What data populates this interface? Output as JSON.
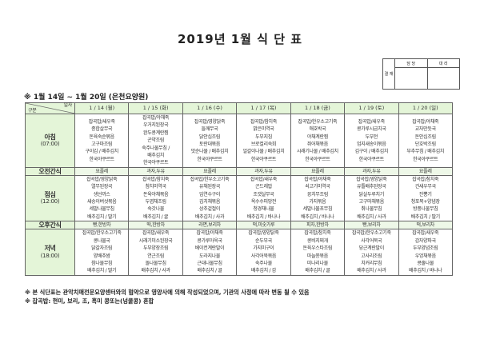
{
  "title": "2019년 1월 식 단 표",
  "approval": {
    "side_label": "결 재",
    "col1": "담 당",
    "col2": "대 리"
  },
  "subtitle": "※ 1월 14일 ~ 1월 20일 (은천요양원)",
  "header": {
    "corner_top": "일자",
    "corner_bottom": "구분",
    "days": [
      "1 / 14 (월)",
      "1 / 15 (화)",
      "1 / 16 (수)",
      "1 / 17 (목)",
      "1 / 18 (금)",
      "1 / 19 (토)",
      "1 / 20 (일)"
    ]
  },
  "rows": [
    {
      "label": "아침",
      "time": "(07:00)",
      "type": "meal",
      "cells": [
        [
          "잡곡밥/새우죽",
          "종합살무국",
          "돈육숙순볶음",
          "고구마조림",
          "구이김 / 배추김치",
          "한국야쿠르트"
        ],
        [
          "잡곡밥/야채죽",
          "우거지된장국",
          "완두콩계란찜",
          "곤약조림",
          "숙주나물무침 /",
          "배추김치",
          "한국야쿠르트"
        ],
        [
          "잡곡밥/영양닭죽",
          "들깨무국",
          "닭안심조림",
          "토란대볶음",
          "맛순나물 / 배추김치",
          "한국야쿠르트"
        ],
        [
          "잡곡밥/참치죽",
          "맑은미역국",
          "두부지짐",
          "브로컬리숙회",
          "얼갈이나물 / 배추김치",
          "한국야쿠르트"
        ],
        [
          "잡곡밥/한우소고기죽",
          "애호박국",
          "야채계란찜",
          "쥐어채볶음",
          "시래기나물 / 배추김치",
          "한국야쿠르트"
        ],
        [
          "잡곡밥/새우죽",
          "콩가루시금치국",
          "두부전",
          "엄지새송이볶음",
          "김구이 / 배추김치",
          "한국야쿠르트"
        ],
        [
          "잡곡밥/야채죽",
          "교자만둣국",
          "돈안심조림",
          "단호박조림",
          "부추무침 / 배추김치",
          "한국야쿠르트"
        ]
      ]
    },
    {
      "label": "오전간식",
      "type": "snack",
      "cells": [
        "요플레",
        "과자,두유",
        "요플레",
        "과자,두유",
        "요플레",
        "과자,두유",
        "요플레"
      ]
    },
    {
      "label": "점심",
      "time": "(12:00)",
      "type": "meal",
      "cells": [
        [
          "잡곡밥/영양닭죽",
          "열무된장국",
          "생선까스",
          "새송이버섯볶음",
          "세발나물무침",
          "배추김치 / 딸기"
        ],
        [
          "잡곡밥/참치죽",
          "참치미역국",
          "돈육야채볶음",
          "두엽채조림",
          "숙갓나물",
          "배추김치 / 귤"
        ],
        [
          "잡곡밥/한우소고기죽",
          "유채된장국",
          "임연수구이",
          "김치채볶음",
          "상추겉절이",
          "배추김치 / 사과"
        ],
        [
          "잡곡밥/새우죽",
          "곤드레밥",
          "조갯살무국",
          "옥수수피망전",
          "청경채나물",
          "배추김치 / 바나나"
        ],
        [
          "잡곡밥/야채죽",
          "쇠고기미역국",
          "꽁치무조림",
          "가지볶음",
          "세발나물초무침",
          "배추김치 / 바나나"
        ],
        [
          "잡곡밥/영양닭죽",
          "유틀배추된장국",
          "닭살두루치기",
          "고구마채볶음",
          "취나물무침",
          "배추김치 / 사과"
        ],
        [
          "잡곡밥/참치죽",
          "건새우무국",
          "잔뽕기",
          "청포묵+양념장",
          "방풍나물무침",
          "배추김치 / 딸기"
        ]
      ]
    },
    {
      "label": "오후간식",
      "type": "snack",
      "cells": [
        "빵,한방차",
        "떡,한방차",
        "라면,보리차",
        "떡,미숫가루",
        "피자,한방차",
        "빵,보리차",
        "떡,보리차"
      ]
    },
    {
      "label": "저녁",
      "time": "(18:00)",
      "type": "meal",
      "cells": [
        [
          "잡곡밥/한우소고기죽",
          "콩나물국",
          "닭갈자조림",
          "양배추쌈",
          "참나물무침",
          "배추김치 / 딸기"
        ],
        [
          "잡곡밥/새우죽",
          "시래기미소된장국",
          "두부양장조림",
          "연근조림",
          "돌나물무침",
          "배추김치 / 사과"
        ],
        [
          "잡곡밥/야채죽",
          "콩가루아욱국",
          "베이컨계란말이",
          "도라지나물",
          "근대나물무침",
          "배추김치 / 귤"
        ],
        [
          "잡곡밥/영양닭죽",
          "순두부국",
          "가지미구이",
          "사각어묵볶음",
          "숙주나물",
          "배추김치 / 감"
        ],
        [
          "잡곡밥/참치죽",
          "콩비지찌개",
          "돈육우스타조림",
          "마늘쫑볶음",
          "미나리나물",
          "배추김치 / 귤"
        ],
        [
          "잡곡밥/한우소고기죽",
          "사각어묵국",
          "당근계란말이",
          "고사리조림",
          "치커리무침",
          "배추김치 / 사과"
        ],
        [
          "잡곡밥/새우죽",
          "감자양파국",
          "두부양념조림",
          "우엉채볶음",
          "콩줄나물",
          "배추김치 / 바나나"
        ]
      ]
    }
  ],
  "notes": [
    "※ 본 식단표는 관악치매전문요양센터와의 협약으로 영양사에 의해 작성되었으며, 기관의 사정에 따라 변동 될 수 있음",
    "※ 잡곡밥: 현미, 보리, 조, 흑미 콩또는(넝쿨콩) 혼합"
  ]
}
